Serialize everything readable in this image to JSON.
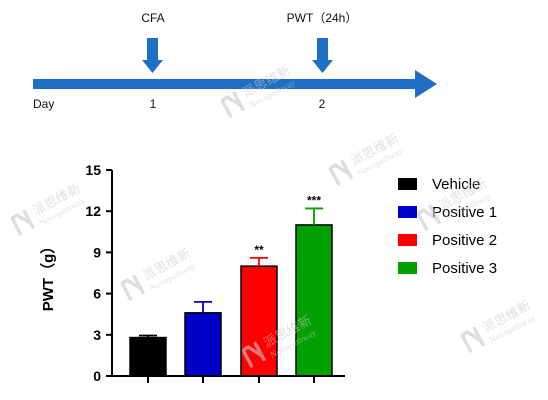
{
  "timeline": {
    "start_label": "Day",
    "events": [
      {
        "label": "CFA",
        "day": "1"
      },
      {
        "label": "PWT（24h）",
        "day": "2"
      }
    ],
    "arrow_color": "#1f6fc5"
  },
  "watermark": {
    "cn": "派思维新",
    "en": "Novopathway"
  },
  "chart_data": {
    "type": "bar",
    "categories": [
      "Vehicle",
      "Positive 1",
      "Positive 2",
      "Positive 3"
    ],
    "values": [
      2.8,
      4.6,
      8.0,
      11.0
    ],
    "errors": [
      0.15,
      0.8,
      0.6,
      1.2
    ],
    "significance": [
      "",
      "",
      "**",
      "***"
    ],
    "colors": [
      "#000000",
      "#0000c8",
      "#ff0000",
      "#00a000"
    ],
    "ylabel": "PWT（g）",
    "ylim": [
      0,
      15
    ],
    "yticks": [
      0,
      3,
      6,
      9,
      12,
      15
    ],
    "legend": {
      "position": "right",
      "entries": [
        "Vehicle",
        "Positive 1",
        "Positive 2",
        "Positive 3"
      ]
    },
    "grid": false
  }
}
